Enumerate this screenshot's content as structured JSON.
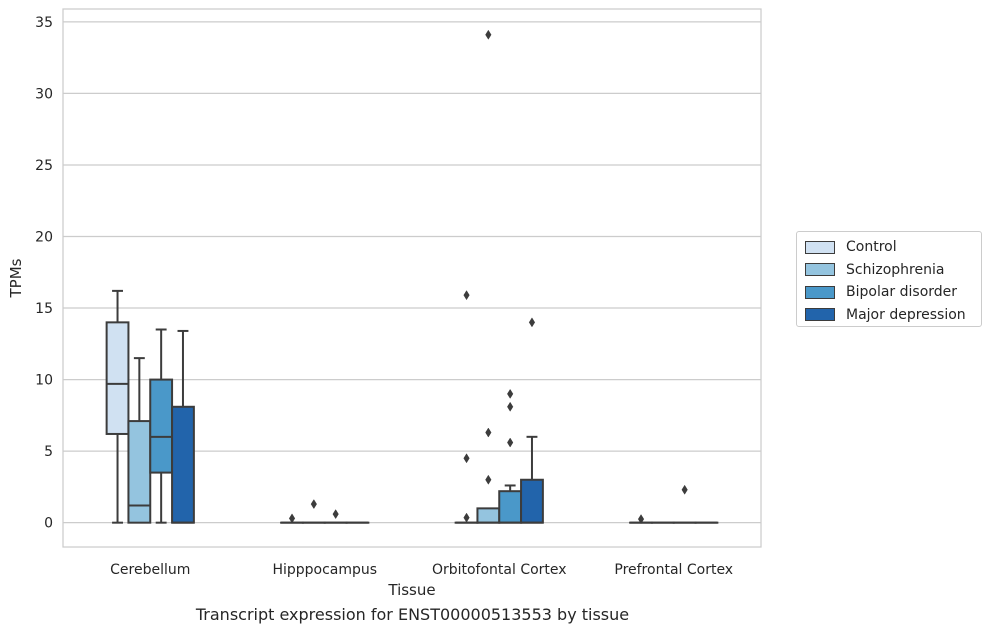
{
  "colors": {
    "Control": "#d0e1f2",
    "Schizophrenia": "#94c4df",
    "Bipolar disorder": "#4a98c9",
    "Major depression": "#2264ab",
    "grid": "#cccccc",
    "line": "#3c3c3c"
  },
  "chart_data": {
    "type": "box",
    "title": "",
    "caption": "Transcript expression for ENST00000513553 by tissue",
    "xlabel": "Tissue",
    "ylabel": "TPMs",
    "ylim": [
      -1.7,
      35.9
    ],
    "yticks": [
      0,
      5,
      10,
      15,
      20,
      25,
      30,
      35
    ],
    "grid": "horizontal",
    "legend_position": "right",
    "categories": [
      "Cerebellum",
      "Hipppocampus",
      "Orbitofontal Cortex",
      "Prefrontal Cortex"
    ],
    "hue_order": [
      "Control",
      "Schizophrenia",
      "Bipolar disorder",
      "Major depression"
    ],
    "boxes": [
      {
        "category": "Cerebellum",
        "group": "Control",
        "whisker_low": 0,
        "q1": 6.2,
        "median": 9.7,
        "q3": 14.0,
        "whisker_high": 16.2,
        "outliers": []
      },
      {
        "category": "Cerebellum",
        "group": "Schizophrenia",
        "whisker_low": 0,
        "q1": 0,
        "median": 1.2,
        "q3": 7.1,
        "whisker_high": 11.5,
        "outliers": []
      },
      {
        "category": "Cerebellum",
        "group": "Bipolar disorder",
        "whisker_low": 0,
        "q1": 3.5,
        "median": 6.0,
        "q3": 10.0,
        "whisker_high": 13.5,
        "outliers": []
      },
      {
        "category": "Cerebellum",
        "group": "Major depression",
        "whisker_low": 0,
        "q1": 0,
        "median": 0,
        "q3": 8.1,
        "whisker_high": 13.4,
        "outliers": []
      },
      {
        "category": "Hipppocampus",
        "group": "Control",
        "whisker_low": 0,
        "q1": 0,
        "median": 0,
        "q3": 0,
        "whisker_high": 0,
        "outliers": [
          0.3
        ]
      },
      {
        "category": "Hipppocampus",
        "group": "Schizophrenia",
        "whisker_low": 0,
        "q1": 0,
        "median": 0,
        "q3": 0,
        "whisker_high": 0,
        "outliers": [
          1.3
        ]
      },
      {
        "category": "Hipppocampus",
        "group": "Bipolar disorder",
        "whisker_low": 0,
        "q1": 0,
        "median": 0,
        "q3": 0,
        "whisker_high": 0,
        "outliers": [
          0.6
        ]
      },
      {
        "category": "Hipppocampus",
        "group": "Major depression",
        "whisker_low": 0,
        "q1": 0,
        "median": 0,
        "q3": 0,
        "whisker_high": 0,
        "outliers": []
      },
      {
        "category": "Orbitofontal Cortex",
        "group": "Control",
        "whisker_low": 0,
        "q1": 0,
        "median": 0,
        "q3": 0,
        "whisker_high": 0,
        "outliers": [
          0.35,
          4.5,
          15.9
        ]
      },
      {
        "category": "Orbitofontal Cortex",
        "group": "Schizophrenia",
        "whisker_low": 0,
        "q1": 0,
        "median": 0,
        "q3": 1.0,
        "whisker_high": 1.0,
        "outliers": [
          3.0,
          6.3,
          34.1
        ]
      },
      {
        "category": "Orbitofontal Cortex",
        "group": "Bipolar disorder",
        "whisker_low": 0,
        "q1": 0,
        "median": 0,
        "q3": 2.2,
        "whisker_high": 2.6,
        "outliers": [
          5.6,
          8.1,
          9.0
        ]
      },
      {
        "category": "Orbitofontal Cortex",
        "group": "Major depression",
        "whisker_low": 0,
        "q1": 0,
        "median": 0,
        "q3": 3.0,
        "whisker_high": 6.0,
        "outliers": [
          14.0
        ]
      },
      {
        "category": "Prefrontal Cortex",
        "group": "Control",
        "whisker_low": 0,
        "q1": 0,
        "median": 0,
        "q3": 0,
        "whisker_high": 0,
        "outliers": [
          0.25
        ]
      },
      {
        "category": "Prefrontal Cortex",
        "group": "Schizophrenia",
        "whisker_low": 0,
        "q1": 0,
        "median": 0,
        "q3": 0,
        "whisker_high": 0,
        "outliers": []
      },
      {
        "category": "Prefrontal Cortex",
        "group": "Bipolar disorder",
        "whisker_low": 0,
        "q1": 0,
        "median": 0,
        "q3": 0,
        "whisker_high": 0,
        "outliers": [
          2.3
        ]
      },
      {
        "category": "Prefrontal Cortex",
        "group": "Major depression",
        "whisker_low": 0,
        "q1": 0,
        "median": 0,
        "q3": 0,
        "whisker_high": 0,
        "outliers": []
      }
    ]
  }
}
